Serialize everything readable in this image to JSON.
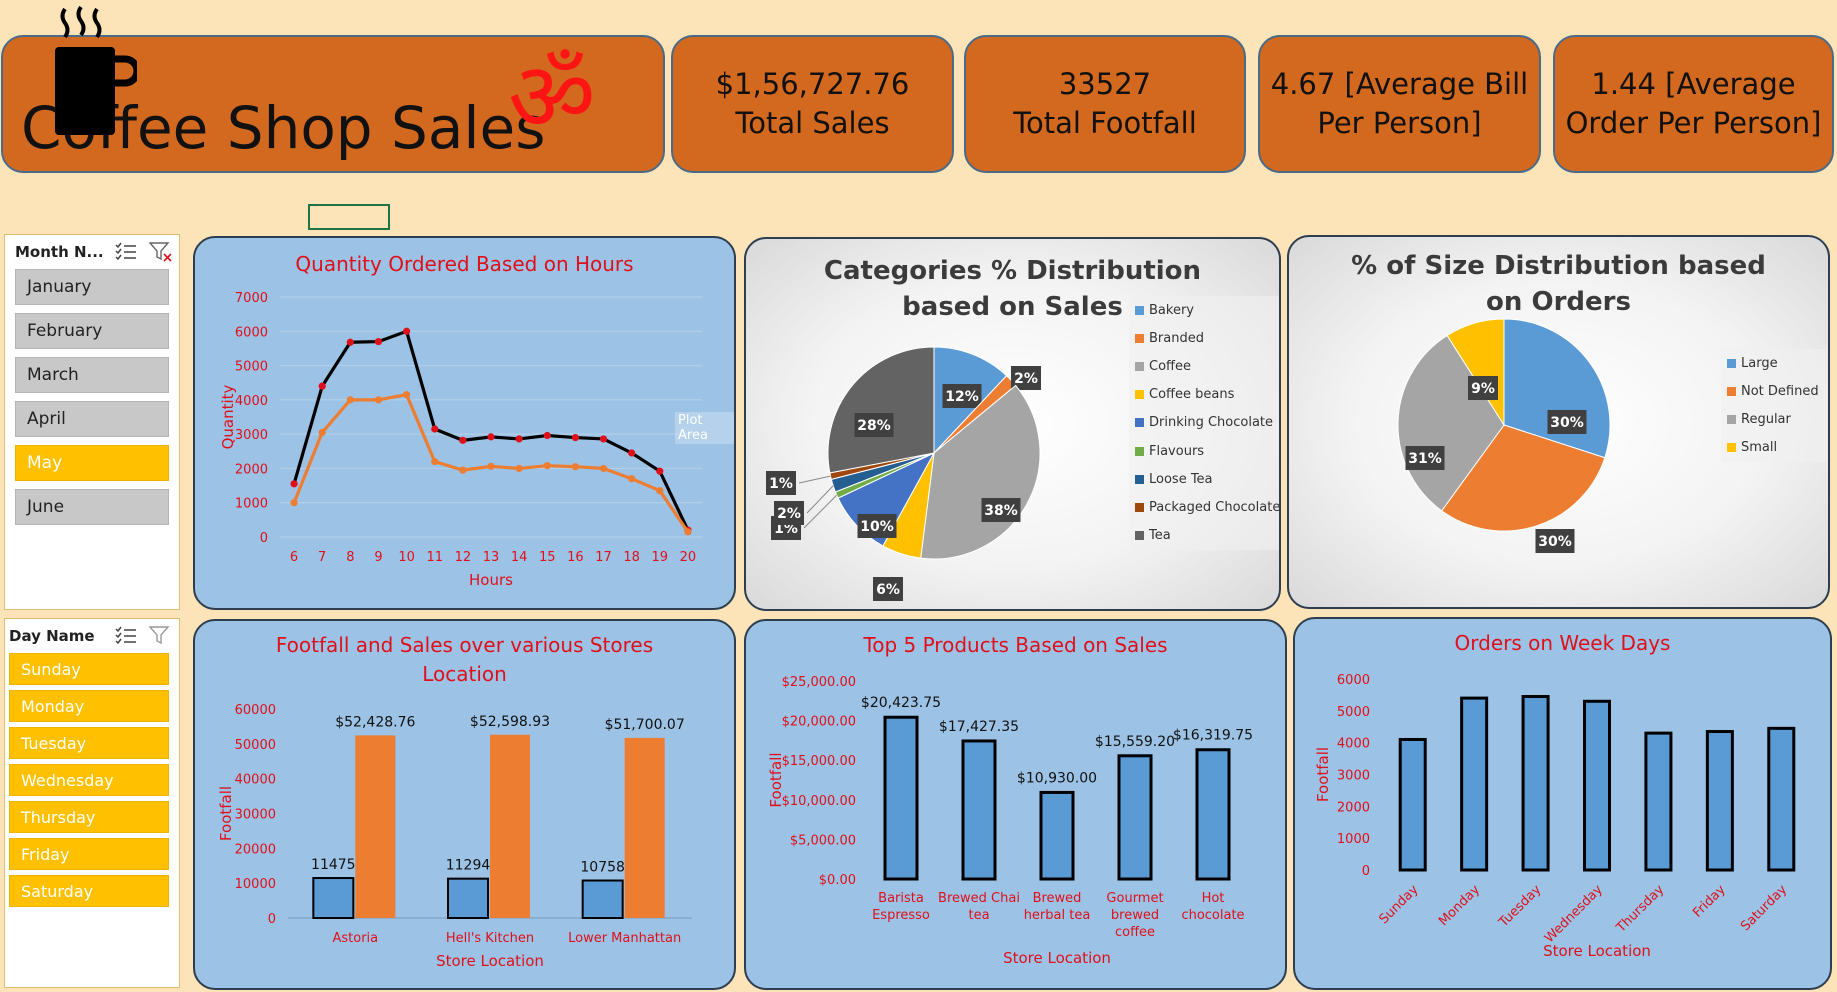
{
  "kpis": {
    "title": "Coffee Shop Sales",
    "total_sales_value": "$1,56,727.76",
    "total_sales_label": "Total Sales",
    "footfall_value": "33527",
    "footfall_label": "Total Footfall",
    "avg_bill_line1": "4.67 [Average Bill",
    "avg_bill_line2": "Per Person]",
    "avg_order_line1": "1.44 [Average",
    "avg_order_line2": "Order Per Person]"
  },
  "month_slicer": {
    "title": "Month N...",
    "items": [
      {
        "label": "January",
        "selected": false
      },
      {
        "label": "February",
        "selected": false
      },
      {
        "label": "March",
        "selected": false
      },
      {
        "label": "April",
        "selected": false
      },
      {
        "label": "May",
        "selected": true
      },
      {
        "label": "June",
        "selected": false
      }
    ]
  },
  "day_slicer": {
    "title": "Day Name",
    "items": [
      {
        "label": "Sunday",
        "selected": true
      },
      {
        "label": "Monday",
        "selected": true
      },
      {
        "label": "Tuesday",
        "selected": true
      },
      {
        "label": "Wednesday",
        "selected": true
      },
      {
        "label": "Thursday",
        "selected": true
      },
      {
        "label": "Friday",
        "selected": true
      },
      {
        "label": "Saturday",
        "selected": true
      }
    ]
  },
  "tooltip": {
    "plot_area": "Plot Area"
  },
  "colors": {
    "accent_orange": "#d2691e",
    "chart_red": "#e0101a",
    "bar_blue": "#5b9bd5",
    "bar_orange": "#ed7d31",
    "slicer_selected": "#ffc000"
  },
  "chart_data": [
    {
      "id": "hours",
      "type": "line",
      "title": "Quantity Ordered Based on Hours",
      "xlabel": "Hours",
      "ylabel": "Quantity",
      "x": [
        6,
        7,
        8,
        9,
        10,
        11,
        12,
        13,
        14,
        15,
        16,
        17,
        18,
        19,
        20
      ],
      "series": [
        {
          "color": "#000000",
          "values": [
            1550,
            4400,
            5680,
            5700,
            6000,
            3150,
            2820,
            2920,
            2860,
            2960,
            2900,
            2860,
            2450,
            1920,
            200
          ]
        },
        {
          "color": "#ed7d31",
          "values": [
            1000,
            3050,
            4000,
            4000,
            4150,
            2200,
            1950,
            2060,
            2000,
            2080,
            2050,
            2000,
            1700,
            1350,
            150
          ]
        }
      ],
      "ylim": [
        0,
        7000
      ],
      "yticks": [
        0,
        1000,
        2000,
        3000,
        4000,
        5000,
        6000,
        7000
      ],
      "grid": true
    },
    {
      "id": "categories",
      "type": "pie",
      "title": "Categories % Distribution based on Sales",
      "categories": [
        "Bakery",
        "Branded",
        "Coffee",
        "Coffee beans",
        "Drinking Chocolate",
        "Flavours",
        "Loose Tea",
        "Packaged Chocolate",
        "Tea"
      ],
      "values": [
        12,
        2,
        38,
        6,
        10,
        1,
        2,
        1,
        28
      ],
      "labels": [
        "12%",
        "2%",
        "38%",
        "6%",
        "10%",
        "1%",
        "2%",
        "1%",
        "28%"
      ],
      "colors": [
        "#5b9bd5",
        "#ed7d31",
        "#a5a5a5",
        "#ffc000",
        "#4472c4",
        "#70ad47",
        "#255e91",
        "#9e480e",
        "#636363"
      ],
      "legend": "right"
    },
    {
      "id": "size",
      "type": "pie",
      "title": "% of Size Distribution based on Orders",
      "categories": [
        "Large",
        "Not Defined",
        "Regular",
        "Small"
      ],
      "values": [
        30,
        30,
        31,
        9
      ],
      "labels": [
        "30%",
        "30%",
        "31%",
        "9%"
      ],
      "colors": [
        "#5b9bd5",
        "#ed7d31",
        "#a5a5a5",
        "#ffc000"
      ],
      "legend": "right"
    },
    {
      "id": "stores",
      "type": "bar",
      "title": "Footfall and Sales over various Stores Location",
      "xlabel": "Store Location",
      "ylabel": "Footfall",
      "categories": [
        "Astoria",
        "Hell's Kitchen",
        "Lower Manhattan"
      ],
      "series": [
        {
          "color": "#5b9bd5",
          "values": [
            11475,
            11294,
            10758
          ],
          "labels": [
            "11475",
            "11294",
            "10758"
          ]
        },
        {
          "color": "#ed7d31",
          "values": [
            52428.76,
            52598.93,
            51700.07
          ],
          "labels": [
            "$52,428.76",
            "$52,598.93",
            "$51,700.07"
          ]
        }
      ],
      "ylim": [
        0,
        60000
      ],
      "yticks": [
        0,
        10000,
        20000,
        30000,
        40000,
        50000,
        60000
      ]
    },
    {
      "id": "products",
      "type": "bar",
      "title": "Top 5 Products Based on Sales",
      "xlabel": "Store Location",
      "ylabel": "Footfall",
      "categories": [
        [
          "Barista",
          "Espresso"
        ],
        [
          "Brewed Chai",
          "tea"
        ],
        [
          "Brewed",
          "herbal tea"
        ],
        [
          "Gourmet",
          "brewed",
          "coffee"
        ],
        [
          "Hot",
          "chocolate"
        ]
      ],
      "values": [
        20423.75,
        17427.35,
        10930.0,
        15559.2,
        16319.75
      ],
      "labels": [
        "$20,423.75",
        "$17,427.35",
        "$10,930.00",
        "$15,559.20",
        "$16,319.75"
      ],
      "ylim": [
        0,
        25000
      ],
      "yticks": [
        "$0.00",
        "$5,000.00",
        "$10,000.00",
        "$15,000.00",
        "$20,000.00",
        "$25,000.00"
      ]
    },
    {
      "id": "weekdays",
      "type": "bar",
      "title": "Orders on Week Days",
      "xlabel": "Store Location",
      "ylabel": "Footfall",
      "categories": [
        "Sunday",
        "Monday",
        "Tuesday",
        "Wednesday",
        "Thursday",
        "Friday",
        "Saturday"
      ],
      "values": [
        4100,
        5400,
        5450,
        5300,
        4300,
        4350,
        4450
      ],
      "ylim": [
        0,
        6000
      ],
      "yticks": [
        0,
        1000,
        2000,
        3000,
        4000,
        5000,
        6000
      ]
    }
  ]
}
